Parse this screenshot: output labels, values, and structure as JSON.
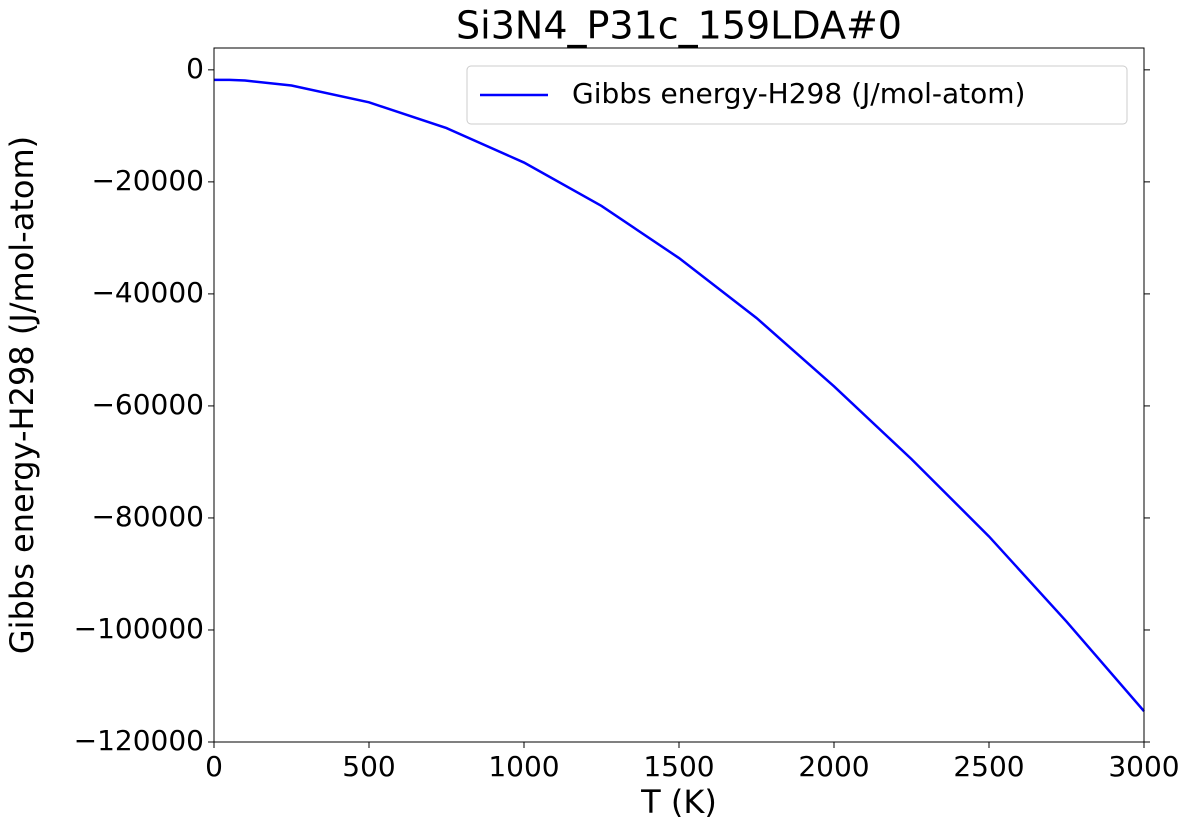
{
  "chart_data": {
    "type": "line",
    "title": "Si3N4_P31c_159LDA#0",
    "x_label": "T (K)",
    "y_label": "Gibbs energy-H298 (J/mol-atom)",
    "x": [
      0,
      50,
      100,
      250,
      500,
      750,
      1000,
      1250,
      1500,
      1750,
      2000,
      2250,
      2500,
      2750,
      3000
    ],
    "series": [
      {
        "name": "Gibbs energy-H298 (J/mol-atom)",
        "color": "#0000ff",
        "values": [
          -1800,
          -1800,
          -1900,
          -2800,
          -5800,
          -10400,
          -16550,
          -24300,
          -33600,
          -44300,
          -56500,
          -69500,
          -83300,
          -98500,
          -114500
        ]
      }
    ],
    "xlim": [
      0,
      3000
    ],
    "xticks": [
      0,
      500,
      1000,
      1500,
      2000,
      2500,
      3000
    ],
    "ylim": [
      -120000,
      3900
    ],
    "yticks": [
      {
        "value": -120000,
        "label": "−120000"
      },
      {
        "value": -100000,
        "label": "−100000"
      },
      {
        "value": -80000,
        "label": "−80000"
      },
      {
        "value": -60000,
        "label": "−60000"
      },
      {
        "value": -40000,
        "label": "−40000"
      },
      {
        "value": -20000,
        "label": "−20000"
      },
      0
    ],
    "grid": false,
    "legend": "upper right"
  }
}
